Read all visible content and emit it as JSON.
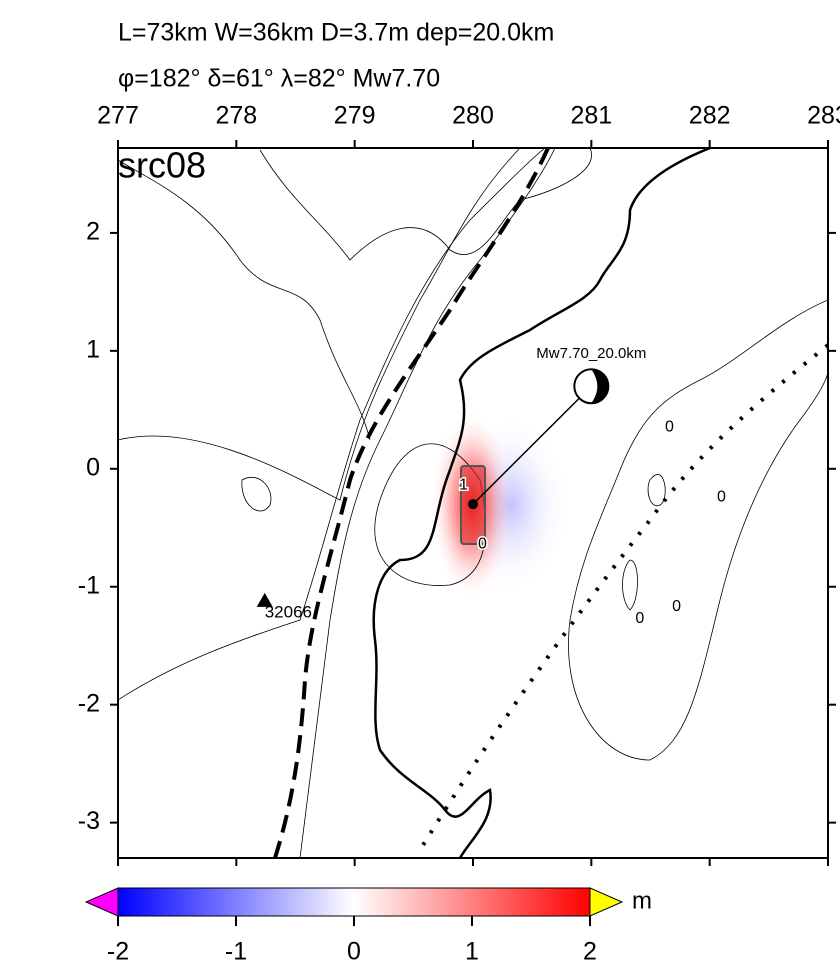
{
  "map": {
    "title_line1": "L=73km W=36km D=3.7m dep=20.0km",
    "title_line2": "φ=182° δ=61° λ=82° Mw7.70",
    "label": "src08",
    "xlim": [
      277,
      283
    ],
    "ylim": [
      -3.3,
      2.72
    ],
    "xticks": [
      277,
      278,
      279,
      280,
      281,
      282,
      283
    ],
    "yticks": [
      2,
      1,
      0,
      -1,
      -2,
      -3
    ],
    "epicenter": {
      "lon": 280.0,
      "lat": -0.3
    },
    "mechanism": {
      "label": "Mw7.70_20.0km",
      "lon": 281.0,
      "lat": 0.7
    },
    "station": {
      "label": "32066",
      "lon": 278.24,
      "lat": -1.12
    },
    "contour_labels": [
      {
        "text": "0",
        "lon": 281.66,
        "lat": 0.35
      },
      {
        "text": "0",
        "lon": 282.1,
        "lat": -0.24
      },
      {
        "text": "0",
        "lon": 280.08,
        "lat": -0.64
      },
      {
        "text": "0",
        "lon": 281.41,
        "lat": -1.27
      },
      {
        "text": "0",
        "lon": 281.72,
        "lat": -1.17
      },
      {
        "text": "1",
        "lon": 279.92,
        "lat": -0.14
      }
    ]
  },
  "colorbar": {
    "range": [
      -2,
      2
    ],
    "ticks": [
      -2,
      -1,
      0,
      1,
      2
    ],
    "unit": "m"
  }
}
